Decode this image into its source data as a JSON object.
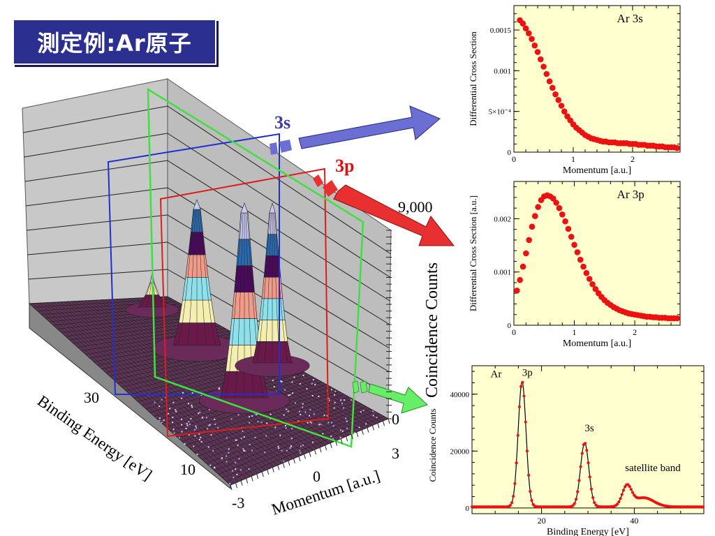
{
  "title": "測定例:Ar原子",
  "main3d": {
    "label_3s": "3s",
    "label_3p": "3p",
    "z_axis_label": "Coincidence Counts",
    "z_tick_top": "9,000",
    "z_tick_zero": "0",
    "x_axis_label": "Binding Energy [eV]",
    "x_ticks": [
      "30",
      "10"
    ],
    "y_axis_label": "Momentum [a.u.]",
    "y_ticks": [
      "-3",
      "0",
      "3"
    ],
    "colors": {
      "cut_3s": "#1f2fd0",
      "cut_3p": "#e01b1b",
      "cut_total": "#3fe03f",
      "arrow_3s": "#6b6fd4",
      "arrow_3p": "#e83030",
      "arrow_total": "#66ee66"
    }
  },
  "chart_data": [
    {
      "type": "scatter",
      "title": "Ar 3s",
      "xlabel": "Momentum [a.u.]",
      "ylabel": "Differential Cross Section",
      "xlim": [
        0,
        2.8
      ],
      "ylim": [
        0,
        0.0018
      ],
      "xticks": [
        "0",
        "1",
        "2"
      ],
      "yticks": [
        "0",
        "5×10⁻⁴",
        "0.001",
        "0.0015"
      ],
      "ytick_values": [
        0,
        0.0005,
        0.001,
        0.0015
      ],
      "color": "#ee1111",
      "x": [
        0.1,
        0.15,
        0.2,
        0.25,
        0.3,
        0.35,
        0.4,
        0.45,
        0.5,
        0.55,
        0.6,
        0.65,
        0.7,
        0.75,
        0.8,
        0.85,
        0.9,
        0.95,
        1.0,
        1.05,
        1.1,
        1.15,
        1.2,
        1.25,
        1.3,
        1.35,
        1.4,
        1.45,
        1.5,
        1.55,
        1.6,
        1.65,
        1.7,
        1.75,
        1.8,
        1.85,
        1.9,
        1.95,
        2.0,
        2.05,
        2.1,
        2.15,
        2.2,
        2.25,
        2.3,
        2.35,
        2.4,
        2.45,
        2.5,
        2.55,
        2.6,
        2.65,
        2.7,
        2.75
      ],
      "y": [
        0.00162,
        0.00158,
        0.00152,
        0.00146,
        0.00139,
        0.00131,
        0.00123,
        0.00114,
        0.00105,
        0.00096,
        0.00087,
        0.00079,
        0.00071,
        0.00064,
        0.00057,
        0.0005,
        0.00044,
        0.00039,
        0.00034,
        0.0003,
        0.00027,
        0.00024,
        0.00021,
        0.00019,
        0.00017,
        0.00016,
        0.00015,
        0.00014,
        0.00013,
        0.00013,
        0.00012,
        0.00012,
        0.00012,
        0.00011,
        0.00011,
        0.00011,
        0.00011,
        0.0001,
        0.0001,
        0.0001,
        9e-05,
        9e-05,
        9e-05,
        8e-05,
        8e-05,
        8e-05,
        7e-05,
        7e-05,
        7e-05,
        6e-05,
        6e-05,
        6e-05,
        6e-05,
        5e-05
      ]
    },
    {
      "type": "scatter",
      "title": "Ar 3p",
      "xlabel": "Momentum [a.u.]",
      "ylabel": "Differential Cross Section [a.u.]",
      "xlim": [
        0,
        2.75
      ],
      "ylim": [
        0,
        0.0027
      ],
      "xticks": [
        "0",
        "1",
        "2"
      ],
      "yticks": [
        "0",
        "0.001",
        "0.002"
      ],
      "ytick_values": [
        0,
        0.001,
        0.002
      ],
      "color": "#ee1111",
      "x": [
        0.05,
        0.1,
        0.15,
        0.2,
        0.25,
        0.3,
        0.35,
        0.4,
        0.45,
        0.5,
        0.55,
        0.6,
        0.65,
        0.7,
        0.75,
        0.8,
        0.85,
        0.9,
        0.95,
        1.0,
        1.05,
        1.1,
        1.15,
        1.2,
        1.25,
        1.3,
        1.35,
        1.4,
        1.45,
        1.5,
        1.55,
        1.6,
        1.65,
        1.7,
        1.75,
        1.8,
        1.85,
        1.9,
        1.95,
        2.0,
        2.05,
        2.1,
        2.15,
        2.2,
        2.25,
        2.3,
        2.35,
        2.4,
        2.45,
        2.5,
        2.55,
        2.6,
        2.65,
        2.7
      ],
      "y": [
        0.00065,
        0.00085,
        0.0011,
        0.00135,
        0.0016,
        0.00185,
        0.00205,
        0.00222,
        0.00235,
        0.00242,
        0.00244,
        0.00242,
        0.00238,
        0.0023,
        0.0022,
        0.00208,
        0.00195,
        0.00181,
        0.00166,
        0.00151,
        0.00137,
        0.00123,
        0.0011,
        0.00098,
        0.00087,
        0.00077,
        0.00068,
        0.0006,
        0.00053,
        0.00047,
        0.00042,
        0.00038,
        0.00034,
        0.00031,
        0.00028,
        0.00026,
        0.00024,
        0.00022,
        0.00021,
        0.0002,
        0.00019,
        0.00018,
        0.00017,
        0.00016,
        0.00016,
        0.00015,
        0.00015,
        0.00014,
        0.00014,
        0.00014,
        0.00013,
        0.00013,
        0.00013,
        0.00013
      ]
    },
    {
      "type": "line",
      "xlabel": "Binding Energy [eV]",
      "ylabel": "Coincidence Counts",
      "xlim": [
        5,
        55
      ],
      "ylim": [
        -2000,
        50000
      ],
      "xticks": [
        20,
        40
      ],
      "yticks": [
        0,
        20000,
        40000
      ],
      "color": "#ee1111",
      "annotations": [
        {
          "text": "Ar",
          "x": 9.0,
          "y": 46000
        },
        {
          "text": "3p",
          "x": 15.8,
          "y": 46500
        },
        {
          "text": "3s",
          "x": 29.3,
          "y": 27000
        },
        {
          "text": "satellite band",
          "x": 44,
          "y": 13000
        }
      ],
      "peaks": [
        {
          "center": 15.8,
          "height": 44000,
          "width": 0.85
        },
        {
          "center": 29.3,
          "height": 22500,
          "width": 0.9
        },
        {
          "center": 38.4,
          "height": 7000,
          "width": 1.0
        },
        {
          "center": 42.0,
          "height": 3200,
          "width": 2.2
        }
      ],
      "baseline": 400
    }
  ]
}
